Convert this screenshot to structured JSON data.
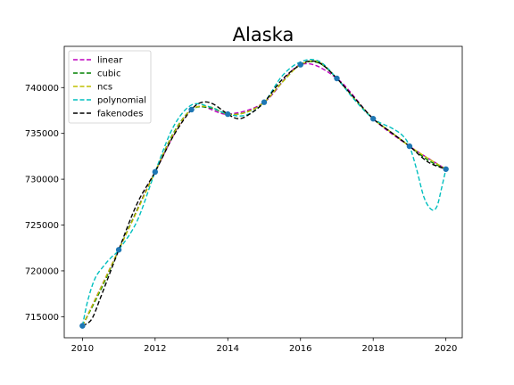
{
  "chart_data": {
    "type": "line",
    "title": "Alaska",
    "xlabel": "",
    "ylabel": "",
    "xlim": [
      2009.5,
      2020.45
    ],
    "ylim": [
      712700,
      744500
    ],
    "x_ticks": [
      2010,
      2012,
      2014,
      2016,
      2018,
      2020
    ],
    "y_ticks": [
      715000,
      720000,
      725000,
      730000,
      735000,
      740000
    ],
    "grid": false,
    "legend_position": "top-left",
    "data_points": {
      "x": [
        2010,
        2011,
        2012,
        2013,
        2014,
        2015,
        2016,
        2017,
        2018,
        2019,
        2020
      ],
      "y": [
        714000,
        722300,
        730800,
        737600,
        737100,
        738400,
        742500,
        741000,
        736600,
        733600,
        731100
      ],
      "color": "#1f77b4"
    },
    "series": [
      {
        "name": "linear",
        "color": "#bf00bf",
        "x": [
          2010,
          2011,
          2012,
          2013,
          2014,
          2015,
          2016,
          2017,
          2018,
          2019,
          2020
        ],
        "y": [
          714000,
          722300,
          730800,
          737600,
          737100,
          738400,
          742500,
          741000,
          736600,
          733600,
          731100
        ]
      },
      {
        "name": "cubic",
        "color": "#008000",
        "x": [
          2010,
          2010.5,
          2011,
          2011.5,
          2012,
          2012.5,
          2013,
          2013.5,
          2014,
          2014.5,
          2015,
          2015.5,
          2016,
          2016.5,
          2017,
          2017.5,
          2018,
          2018.5,
          2019,
          2019.5,
          2020
        ],
        "y": [
          714000,
          717900,
          722300,
          726600,
          730800,
          735000,
          737600,
          737800,
          737100,
          737300,
          738400,
          740600,
          742500,
          742700,
          741000,
          738700,
          736600,
          735100,
          733600,
          732100,
          731100
        ]
      },
      {
        "name": "ncs",
        "color": "#bfbf00",
        "x": [
          2010,
          2010.5,
          2011,
          2011.5,
          2012,
          2012.5,
          2013,
          2013.5,
          2014,
          2014.5,
          2015,
          2015.5,
          2016,
          2016.5,
          2017,
          2017.5,
          2018,
          2018.5,
          2019,
          2019.5,
          2020
        ],
        "y": [
          714000,
          718100,
          722300,
          726500,
          730800,
          734900,
          737600,
          737900,
          737100,
          737300,
          738400,
          740600,
          742500,
          742800,
          741000,
          738700,
          736600,
          735100,
          733600,
          732300,
          731100
        ]
      },
      {
        "name": "polynomial",
        "color": "#00bfbf",
        "x": [
          2010,
          2010.15,
          2010.35,
          2010.6,
          2010.8,
          2011,
          2011.5,
          2012,
          2012.5,
          2013,
          2013.5,
          2014,
          2014.5,
          2015,
          2015.5,
          2016,
          2016.5,
          2017,
          2017.5,
          2018,
          2018.5,
          2018.8,
          2019,
          2019.2,
          2019.4,
          2019.6,
          2019.75,
          2019.88,
          2020
        ],
        "y": [
          714000,
          716800,
          719200,
          720600,
          721500,
          722300,
          725400,
          730800,
          735700,
          738100,
          737900,
          737100,
          737000,
          738400,
          741300,
          742800,
          742900,
          741000,
          738600,
          736600,
          735600,
          734800,
          733600,
          731000,
          728000,
          726700,
          727000,
          729000,
          731100
        ]
      },
      {
        "name": "fakenodes",
        "color": "#000000",
        "x": [
          2010,
          2010.25,
          2010.5,
          2011,
          2011.5,
          2012,
          2012.5,
          2013,
          2013.3,
          2013.6,
          2014,
          2014.3,
          2014.6,
          2015,
          2015.5,
          2016,
          2016.3,
          2016.6,
          2017,
          2017.5,
          2018,
          2018.5,
          2019,
          2019.5,
          2020
        ],
        "y": [
          714000,
          714700,
          717100,
          722300,
          727300,
          730800,
          734700,
          737600,
          738400,
          738200,
          737100,
          736600,
          737100,
          738400,
          740900,
          742500,
          742900,
          742500,
          741000,
          738800,
          736600,
          735100,
          733600,
          731900,
          731100
        ]
      }
    ]
  }
}
